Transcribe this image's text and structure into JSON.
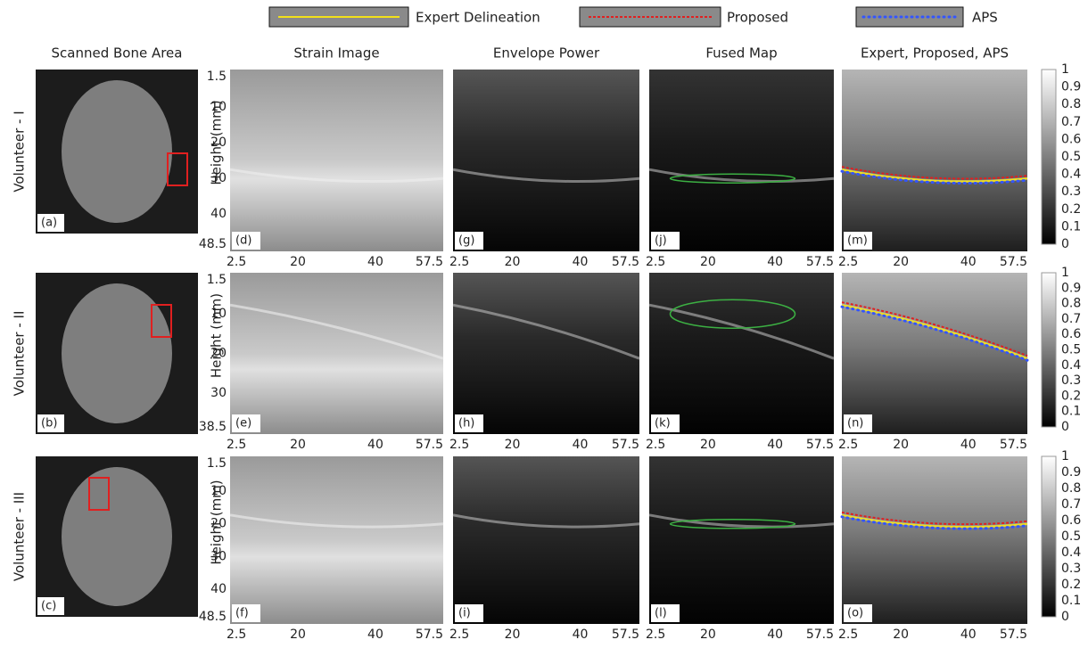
{
  "legend": [
    {
      "label": "Expert Delineation"
    },
    {
      "label": "Proposed"
    },
    {
      "label": "APS"
    }
  ],
  "columns": [
    "Scanned Bone Area",
    "Strain Image",
    "Envelope Power",
    "Fused Map",
    "Expert, Proposed, APS"
  ],
  "y_axis_label": "Height (mm)",
  "x_ticks": [
    "2.5",
    "20",
    "40",
    "57.5"
  ],
  "colorbar_ticks": [
    "1",
    "0.9",
    "0.8",
    "0.7",
    "0.6",
    "0.5",
    "0.4",
    "0.3",
    "0.2",
    "0.1",
    "0"
  ],
  "rows": [
    {
      "label": "Volunteer - I",
      "panels": [
        "(a)",
        "(d)",
        "(g)",
        "(j)",
        "(m)"
      ],
      "y_ticks": [
        "1.5",
        "10",
        "20",
        "30",
        "40",
        "48.5"
      ]
    },
    {
      "label": "Volunteer - II",
      "panels": [
        "(b)",
        "(e)",
        "(h)",
        "(k)",
        "(n)"
      ],
      "y_ticks": [
        "1.5",
        "10",
        "20",
        "30",
        "38.5"
      ]
    },
    {
      "label": "Volunteer - III",
      "panels": [
        "(c)",
        "(f)",
        "(i)",
        "(l)",
        "(o)"
      ],
      "y_ticks": [
        "1.5",
        "10",
        "20",
        "30",
        "40",
        "48.5"
      ]
    }
  ]
}
